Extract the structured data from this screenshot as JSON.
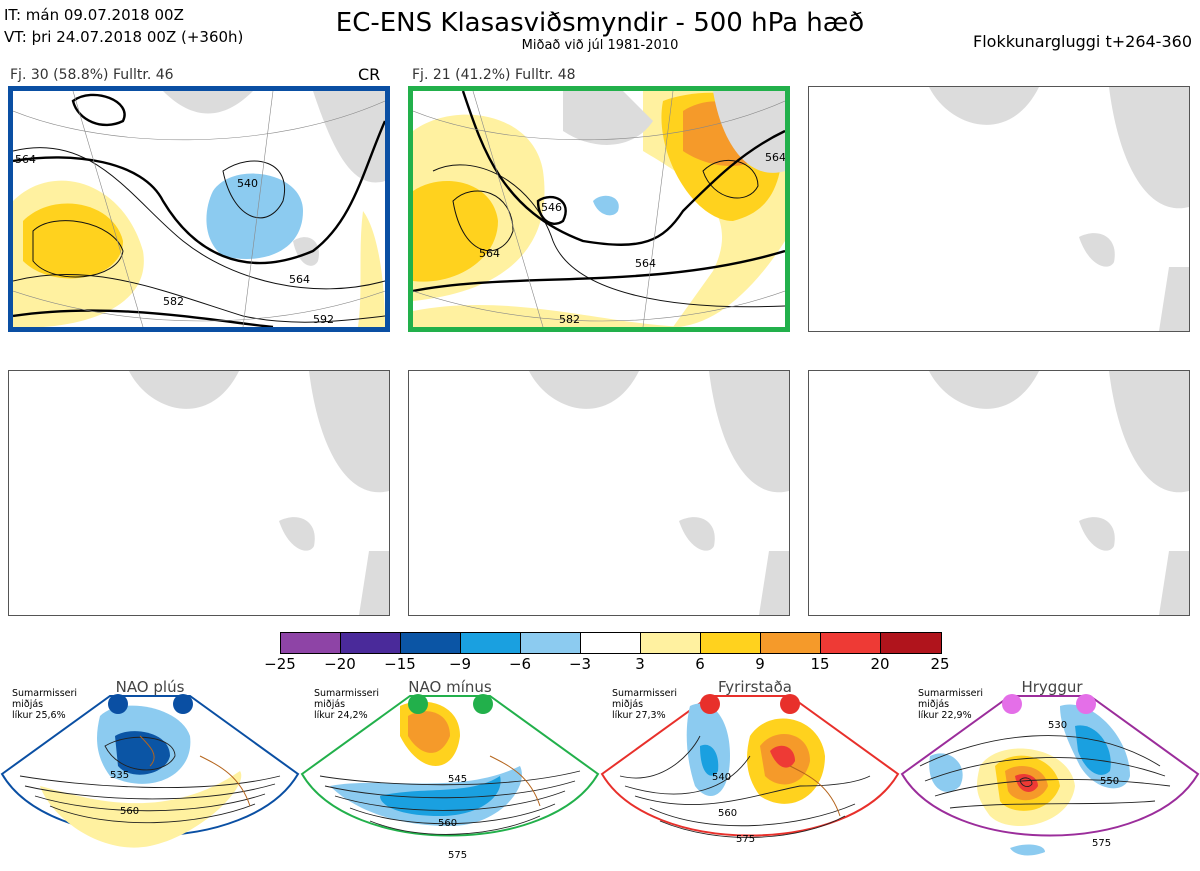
{
  "header": {
    "it_line": "IT: mán 09.07.2018 00Z",
    "vt_line": "VT: þri 24.07.2018 00Z  (+360h)",
    "title": "EC-ENS Klasasviðsmyndir - 500 hPa hæð",
    "subtitle": "Miðað við júl 1981-2010",
    "window": "Flokkunargluggi t+264-360"
  },
  "panels": [
    {
      "label": "Fj. 30 (58.8%)   Fulltr. 46",
      "extra": "CR",
      "border": "#0a4fa3",
      "contours": [
        "564",
        "564",
        "582",
        "592",
        "540"
      ]
    },
    {
      "label": "Fj. 21 (41.2%)   Fulltr. 48",
      "extra": "",
      "border": "#22b04b",
      "contours": [
        "564",
        "564",
        "582",
        "546",
        "564"
      ]
    }
  ],
  "colorbar": {
    "colors": [
      "#8e44a6",
      "#4a2a9a",
      "#0b55a5",
      "#1aa0e0",
      "#8ccbf0",
      "#ffffff",
      "#fff1a0",
      "#ffd21e",
      "#f59a2a",
      "#ee3a35",
      "#b0141c"
    ],
    "ticks": [
      "−25",
      "−20",
      "−15",
      "−9",
      "−6",
      "−3",
      "3",
      "6",
      "9",
      "15",
      "20",
      "25"
    ]
  },
  "regimes": [
    {
      "title": "NAO plús",
      "season": "Sumarmisseri",
      "kind": "miðjás",
      "prob": "líkur 25,6%",
      "color": "#0a4fa3",
      "labels": [
        "535",
        "560"
      ]
    },
    {
      "title": "NAO mínus",
      "season": "Sumarmisseri",
      "kind": "miðjás",
      "prob": "líkur 24,2%",
      "color": "#22b04b",
      "labels": [
        "545",
        "560",
        "575"
      ]
    },
    {
      "title": "Fyrirstaða",
      "season": "Sumarmisseri",
      "kind": "miðjás",
      "prob": "líkur 27,3%",
      "color": "#e8302b",
      "labels": [
        "540",
        "560",
        "575"
      ]
    },
    {
      "title": "Hryggur",
      "season": "Sumarmisseri",
      "kind": "miðjás",
      "prob": "líkur 22,9%",
      "color": "#e46fe8",
      "labels": [
        "530",
        "550",
        "575"
      ]
    }
  ]
}
